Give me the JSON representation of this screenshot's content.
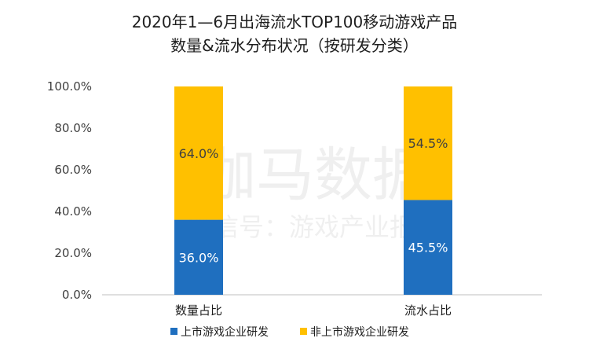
{
  "chart_data": {
    "type": "bar",
    "stacked": true,
    "title": "2020年1—6月出海流水TOP100移动游戏产品",
    "subtitle": "数量&流水分布状况（按研发分类）",
    "categories": [
      "数量占比",
      "流水占比"
    ],
    "series": [
      {
        "name": "上市游戏企业研发",
        "color": "#1f6fbf",
        "label_color": "#ffffff",
        "values": [
          36.0,
          45.5
        ],
        "labels": [
          "36.0%",
          "45.5%"
        ]
      },
      {
        "name": "非上市游戏企业研发",
        "color": "#ffc000",
        "label_color": "#404040",
        "values": [
          64.0,
          54.5
        ],
        "labels": [
          "64.0%",
          "54.5%"
        ]
      }
    ],
    "ylim": [
      0,
      100
    ],
    "yticks": [
      "0.0%",
      "20.0%",
      "40.0%",
      "60.0%",
      "80.0%",
      "100.0%"
    ],
    "grid": false,
    "legend_position": "bottom"
  },
  "watermark": {
    "line1": "伽马数据",
    "line2": "微信号：游戏产业报告"
  }
}
